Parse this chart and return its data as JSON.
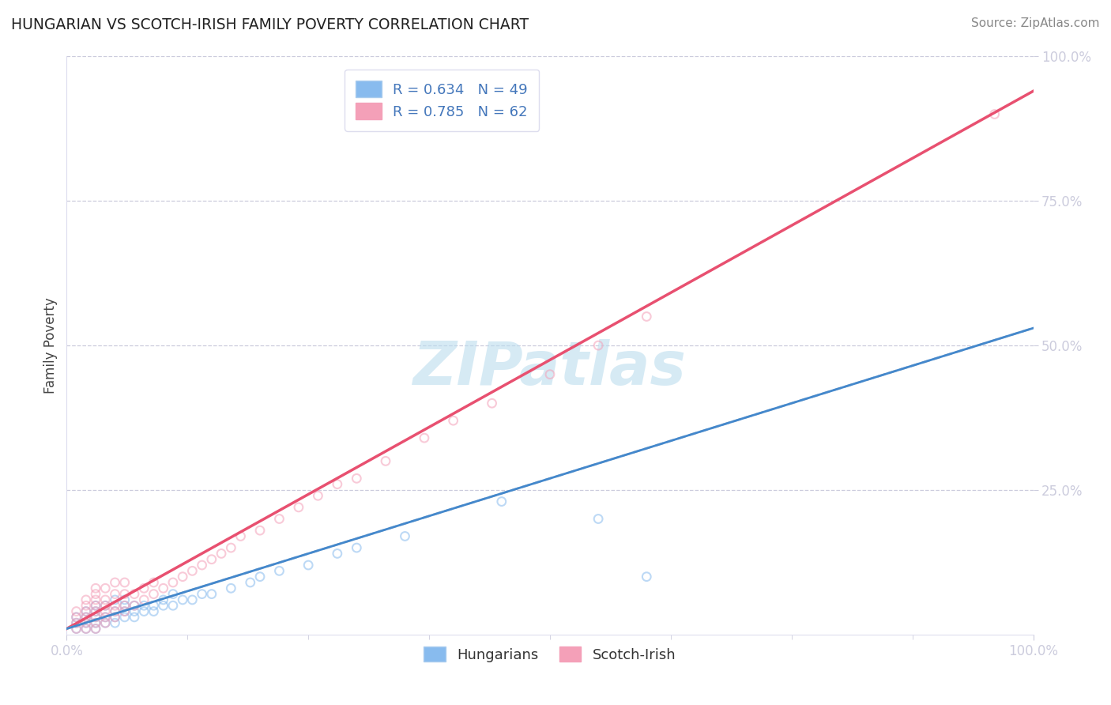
{
  "title": "HUNGARIAN VS SCOTCH-IRISH FAMILY POVERTY CORRELATION CHART",
  "source": "Source: ZipAtlas.com",
  "ylabel": "Family Poverty",
  "xlim": [
    0,
    100
  ],
  "ylim": [
    0,
    100
  ],
  "ytick_vals": [
    25,
    50,
    75,
    100
  ],
  "ytick_labels": [
    "25.0%",
    "50.0%",
    "75.0%",
    "100.0%"
  ],
  "xtick_vals": [
    0,
    100
  ],
  "xtick_labels": [
    "0.0%",
    "100.0%"
  ],
  "hungarian_color": "#88BBEE",
  "scotch_color": "#F4A0B8",
  "hungarian_line_color": "#4488CC",
  "scotch_line_color": "#E85070",
  "hungarian_dash_color": "#88AACCCC",
  "watermark_text": "ZIPatlas",
  "watermark_color": "#BBDDEE",
  "background_color": "#FFFFFF",
  "grid_color": "#CCCCDD",
  "title_color": "#222222",
  "source_color": "#888888",
  "tick_color": "#5588BB",
  "legend_text_color": "#4477BB",
  "hung_R": "0.634",
  "hung_N": "49",
  "scot_R": "0.785",
  "scot_N": "62",
  "hung_line_slope": 0.52,
  "hung_line_intercept": 1.0,
  "scot_line_slope": 0.93,
  "scot_line_intercept": 1.0,
  "hungarian_pts": [
    [
      1,
      1
    ],
    [
      1,
      2
    ],
    [
      1,
      3
    ],
    [
      2,
      1
    ],
    [
      2,
      2
    ],
    [
      2,
      3
    ],
    [
      2,
      4
    ],
    [
      3,
      1
    ],
    [
      3,
      2
    ],
    [
      3,
      3
    ],
    [
      3,
      4
    ],
    [
      3,
      5
    ],
    [
      4,
      2
    ],
    [
      4,
      3
    ],
    [
      4,
      5
    ],
    [
      5,
      2
    ],
    [
      5,
      3
    ],
    [
      5,
      4
    ],
    [
      5,
      6
    ],
    [
      6,
      3
    ],
    [
      6,
      4
    ],
    [
      6,
      5
    ],
    [
      6,
      6
    ],
    [
      7,
      3
    ],
    [
      7,
      4
    ],
    [
      7,
      5
    ],
    [
      8,
      4
    ],
    [
      8,
      5
    ],
    [
      9,
      4
    ],
    [
      9,
      5
    ],
    [
      10,
      5
    ],
    [
      10,
      6
    ],
    [
      11,
      5
    ],
    [
      11,
      7
    ],
    [
      12,
      6
    ],
    [
      13,
      6
    ],
    [
      14,
      7
    ],
    [
      15,
      7
    ],
    [
      17,
      8
    ],
    [
      19,
      9
    ],
    [
      20,
      10
    ],
    [
      22,
      11
    ],
    [
      25,
      12
    ],
    [
      28,
      14
    ],
    [
      30,
      15
    ],
    [
      35,
      17
    ],
    [
      45,
      23
    ],
    [
      55,
      20
    ],
    [
      60,
      10
    ]
  ],
  "scotch_pts": [
    [
      1,
      1
    ],
    [
      1,
      2
    ],
    [
      1,
      3
    ],
    [
      1,
      4
    ],
    [
      2,
      1
    ],
    [
      2,
      2
    ],
    [
      2,
      3
    ],
    [
      2,
      4
    ],
    [
      2,
      5
    ],
    [
      2,
      6
    ],
    [
      3,
      1
    ],
    [
      3,
      2
    ],
    [
      3,
      3
    ],
    [
      3,
      4
    ],
    [
      3,
      5
    ],
    [
      3,
      6
    ],
    [
      3,
      7
    ],
    [
      3,
      8
    ],
    [
      4,
      2
    ],
    [
      4,
      3
    ],
    [
      4,
      4
    ],
    [
      4,
      5
    ],
    [
      4,
      6
    ],
    [
      4,
      8
    ],
    [
      5,
      3
    ],
    [
      5,
      4
    ],
    [
      5,
      5
    ],
    [
      5,
      7
    ],
    [
      5,
      9
    ],
    [
      6,
      4
    ],
    [
      6,
      5
    ],
    [
      6,
      7
    ],
    [
      6,
      9
    ],
    [
      7,
      5
    ],
    [
      7,
      7
    ],
    [
      8,
      6
    ],
    [
      8,
      8
    ],
    [
      9,
      7
    ],
    [
      9,
      9
    ],
    [
      10,
      8
    ],
    [
      11,
      9
    ],
    [
      12,
      10
    ],
    [
      13,
      11
    ],
    [
      14,
      12
    ],
    [
      15,
      13
    ],
    [
      16,
      14
    ],
    [
      17,
      15
    ],
    [
      18,
      17
    ],
    [
      20,
      18
    ],
    [
      22,
      20
    ],
    [
      24,
      22
    ],
    [
      26,
      24
    ],
    [
      28,
      26
    ],
    [
      30,
      27
    ],
    [
      33,
      30
    ],
    [
      37,
      34
    ],
    [
      40,
      37
    ],
    [
      44,
      40
    ],
    [
      50,
      45
    ],
    [
      55,
      50
    ],
    [
      60,
      55
    ],
    [
      96,
      90
    ]
  ],
  "marker_size": 60,
  "marker_alpha": 0.55,
  "title_fontsize": 13.5,
  "source_fontsize": 11,
  "tick_fontsize": 12,
  "legend_fontsize": 13,
  "ylabel_fontsize": 12,
  "watermark_fontsize": 55
}
